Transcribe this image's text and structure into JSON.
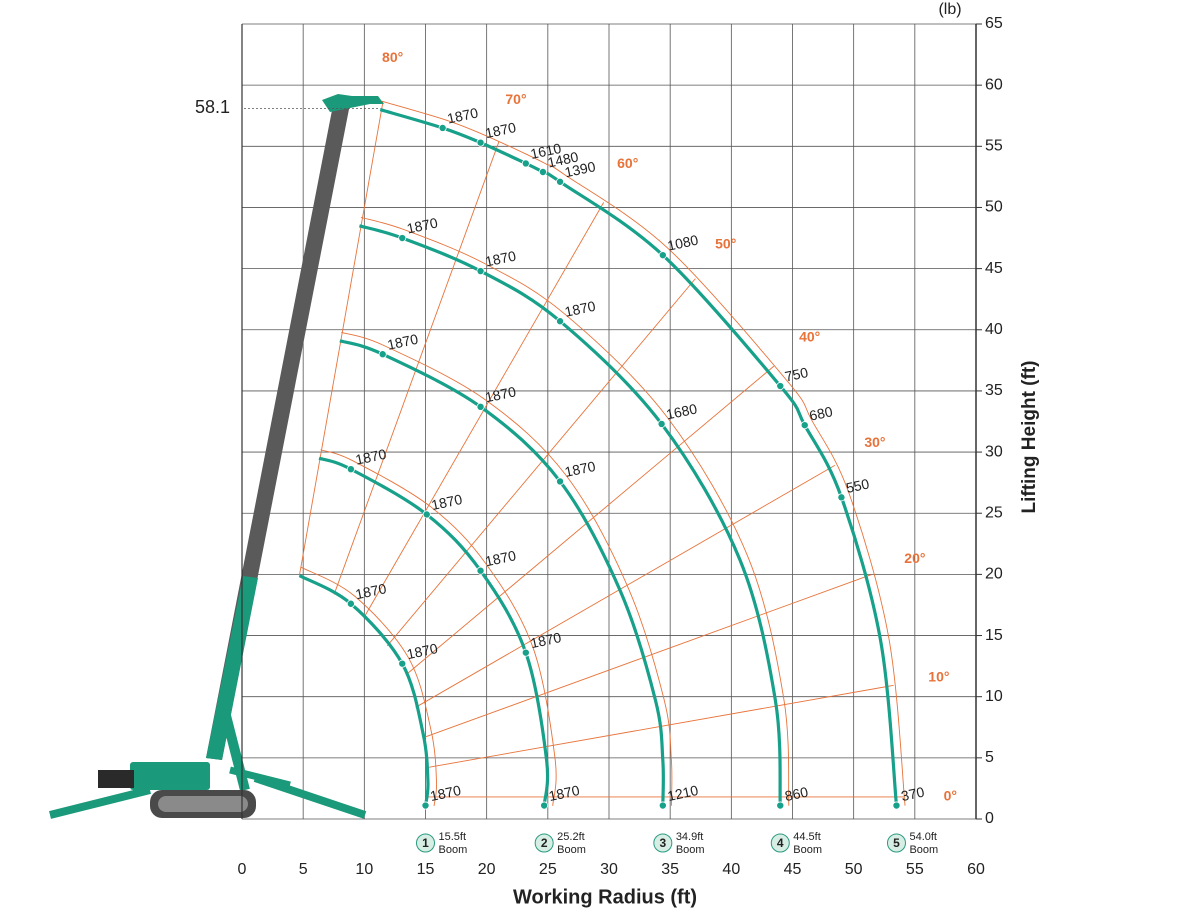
{
  "chart_data": {
    "type": "line",
    "unit": "(lb)",
    "xlabel": "Working Radius (ft)",
    "ylabel": "Lifting Height (ft)",
    "xlim": [
      0,
      60
    ],
    "ylim": [
      0,
      65
    ],
    "xticks": [
      0,
      5,
      10,
      15,
      20,
      25,
      30,
      35,
      40,
      45,
      50,
      55,
      60
    ],
    "yticks": [
      0,
      5,
      10,
      15,
      20,
      25,
      30,
      35,
      40,
      45,
      50,
      55,
      60,
      65
    ],
    "grid": true,
    "color": "#17a08a",
    "angle_color": "#e8733a",
    "max_height": 58.1,
    "angles": [
      {
        "value": 80,
        "label": "80°"
      },
      {
        "value": 70,
        "label": "70°"
      },
      {
        "value": 60,
        "label": "60°"
      },
      {
        "value": 50,
        "label": "50°"
      },
      {
        "value": 40,
        "label": "40°"
      },
      {
        "value": 30,
        "label": "30°"
      },
      {
        "value": 20,
        "label": "20°"
      },
      {
        "value": 10,
        "label": "10°"
      },
      {
        "value": 0,
        "label": "0°"
      }
    ],
    "series": [
      {
        "name": "1",
        "length": "15.5ft",
        "label": "Boom",
        "x": [
          4.7,
          8.9,
          13.1,
          14.8,
          15.2,
          15.0
        ],
        "y": [
          19.9,
          17.6,
          12.7,
          7.0,
          3.0,
          1.1
        ],
        "loads": [
          null,
          1870,
          1870,
          null,
          null,
          1870
        ]
      },
      {
        "name": "2",
        "length": "25.2ft",
        "label": "Boom",
        "x": [
          6.3,
          8.9,
          15.1,
          19.5,
          23.2,
          24.9,
          24.7
        ],
        "y": [
          29.5,
          28.6,
          24.9,
          20.3,
          13.6,
          4.8,
          1.1
        ],
        "loads": [
          null,
          1870,
          1870,
          1870,
          1870,
          null,
          1870
        ]
      },
      {
        "name": "3",
        "length": "34.9ft",
        "label": "Boom",
        "x": [
          8.0,
          11.5,
          19.5,
          26.0,
          30.9,
          33.8,
          34.4,
          34.4
        ],
        "y": [
          39.1,
          38.0,
          33.7,
          27.6,
          18.7,
          9.7,
          4.8,
          1.1
        ],
        "loads": [
          null,
          1870,
          1870,
          1870,
          null,
          null,
          null,
          1210
        ]
      },
      {
        "name": "4",
        "length": "44.5ft",
        "label": "Boom",
        "x": [
          9.6,
          13.1,
          19.5,
          26.0,
          34.3,
          40.7,
          43.6,
          44.0
        ],
        "y": [
          48.5,
          47.5,
          44.8,
          40.7,
          32.3,
          21.2,
          9.7,
          1.1
        ],
        "loads": [
          null,
          1870,
          1870,
          1870,
          1680,
          null,
          null,
          860
        ]
      },
      {
        "name": "5",
        "length": "54.0ft",
        "label": "Boom",
        "x": [
          11.3,
          16.4,
          19.5,
          23.2,
          24.6,
          26.0,
          34.4,
          44.0,
          46.0,
          49.0,
          52.2,
          53.5
        ],
        "y": [
          58.0,
          56.5,
          55.3,
          53.6,
          52.9,
          52.1,
          46.1,
          35.4,
          32.2,
          26.3,
          14.6,
          1.1
        ],
        "loads": [
          null,
          1870,
          1870,
          1610,
          1480,
          1390,
          1080,
          750,
          680,
          550,
          null,
          370
        ]
      }
    ]
  }
}
